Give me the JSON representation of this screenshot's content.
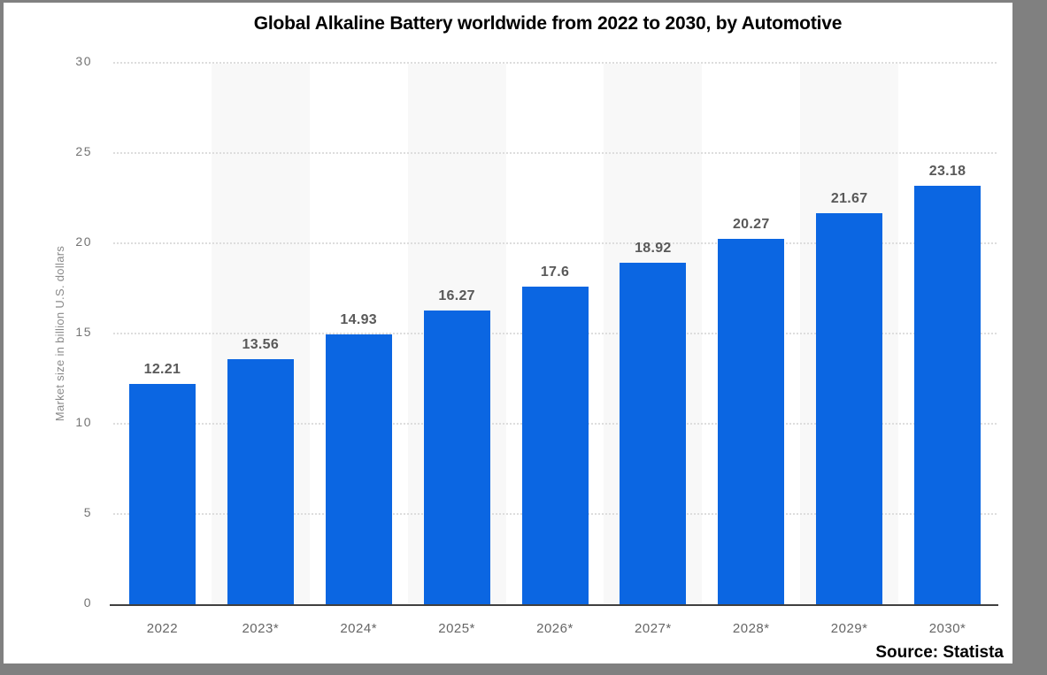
{
  "frame": {
    "border_color": "#808080",
    "panel_background": "#ffffff"
  },
  "chart": {
    "title": "Global Alkaline Battery worldwide from 2022 to 2030, by Automotive",
    "source_label": "Source: Statista",
    "y_axis_title": "Market size in billion U.S. dollars"
  },
  "chart_data": {
    "type": "bar",
    "title": "Global Alkaline Battery worldwide from 2022 to 2030, by Automotive",
    "categories": [
      "2022",
      "2023*",
      "2024*",
      "2025*",
      "2026*",
      "2027*",
      "2028*",
      "2029*",
      "2030*"
    ],
    "values": [
      12.21,
      13.56,
      14.93,
      16.27,
      17.6,
      18.92,
      20.27,
      21.67,
      23.18
    ],
    "value_labels": [
      "12.21",
      "13.56",
      "14.93",
      "16.27",
      "17.6",
      "18.92",
      "20.27",
      "21.67",
      "23.18"
    ],
    "xlabel": "",
    "ylabel": "Market size in billion U.S. dollars",
    "ylim": [
      0,
      30
    ],
    "y_ticks": [
      0,
      5,
      10,
      15,
      20,
      25,
      30
    ],
    "grid": "horizontal-dotted",
    "legend": "none",
    "plot_band_columns": [
      1,
      3,
      5,
      7
    ],
    "colors": {
      "bar": "#0b66e2",
      "plot_band": "#f8f8f8",
      "gridline": "#dddddd",
      "axis_line": "#404040",
      "y_tick_label": "#737373",
      "x_tick_label": "#666666",
      "value_label": "#595959",
      "title": "#000000"
    }
  }
}
